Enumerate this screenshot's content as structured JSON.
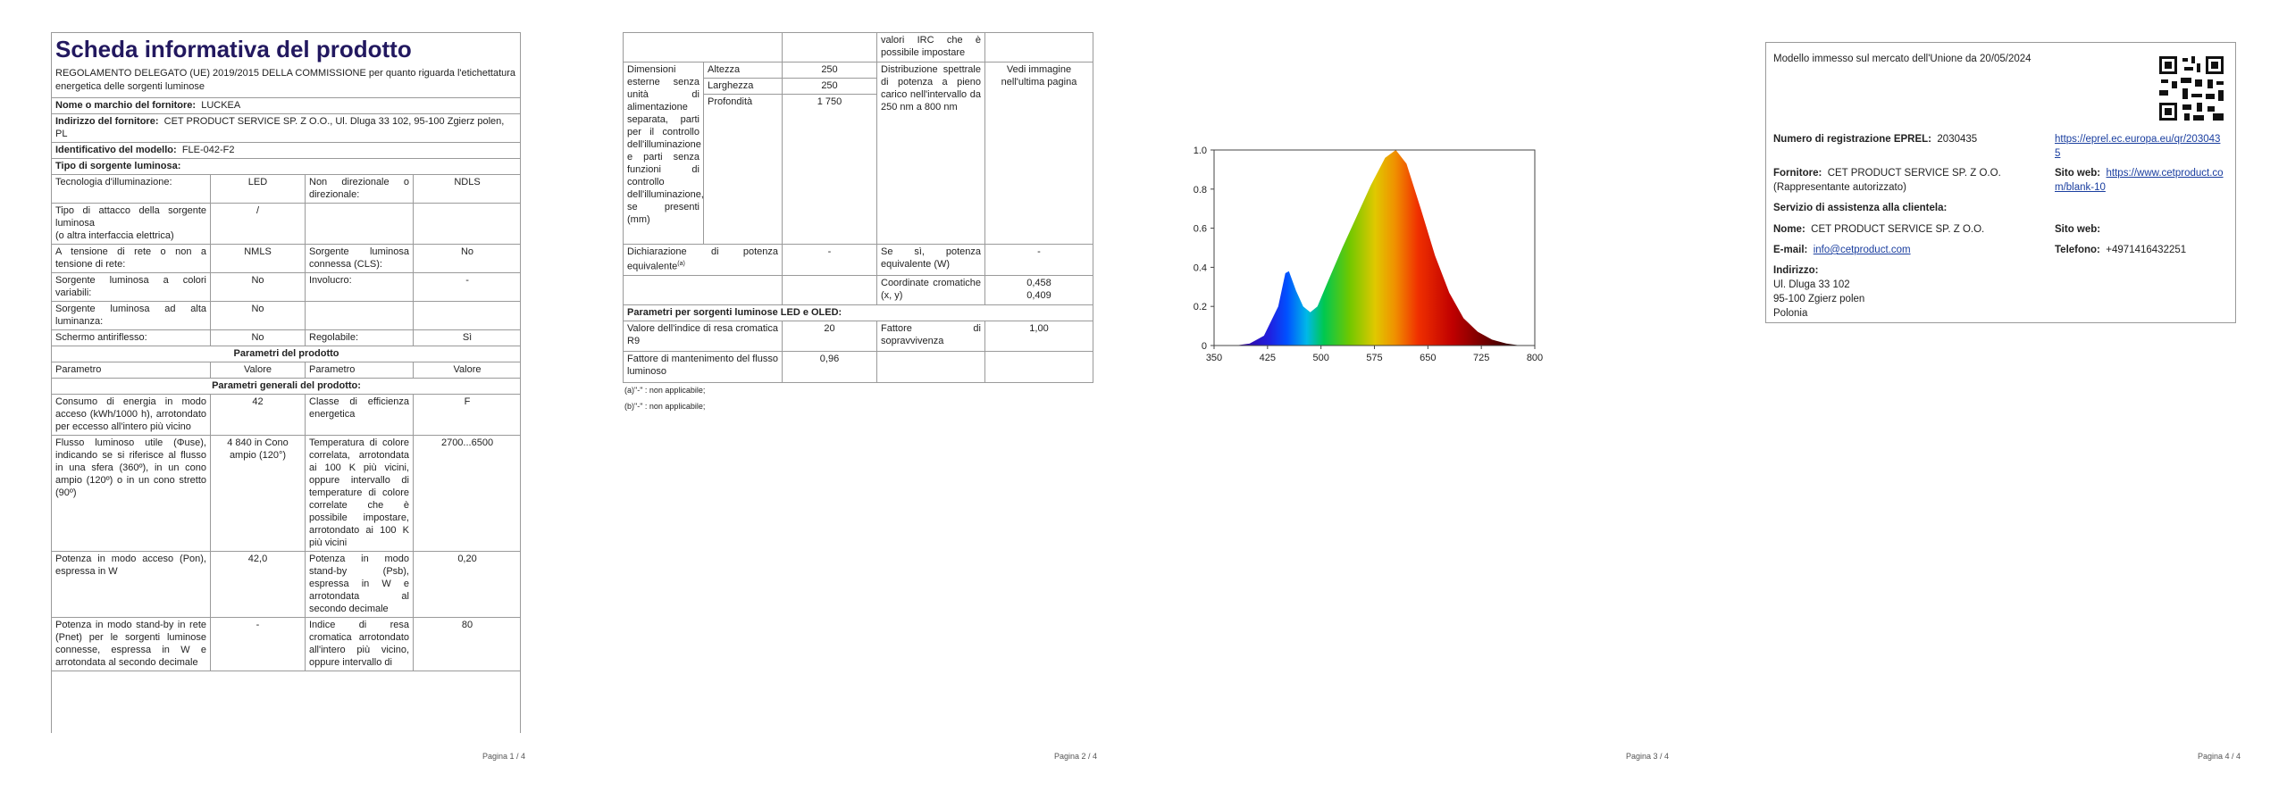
{
  "page1": {
    "title": "Scheda informativa del prodotto",
    "subtitle": "REGOLAMENTO DELEGATO (UE) 2019/2015 DELLA COMMISSIONE per quanto riguarda l'etichettatura energetica delle sorgenti luminose",
    "rows": [
      [
        "Nome o marchio del fornitore:",
        "LUCKEA"
      ],
      [
        "Indirizzo del fornitore:",
        "CET PRODUCT SERVICE SP. Z O.O., Ul. Dluga 33 102, 95-100 Zgierz polen, PL"
      ],
      [
        "Identificativo del modello:",
        "FLE-042-F2"
      ],
      [
        "Tipo di sorgente luminosa:"
      ],
      [
        "Tecnologia d'illuminazione:",
        "LED",
        "Non direzionale o direzionale:",
        "NDLS"
      ],
      [
        "Tipo di attacco della sorgente luminosa\n(o altra interfaccia elettrica)",
        "/",
        null,
        null
      ],
      [
        "A tensione di rete o non a tensione di rete:",
        "NMLS",
        "Sorgente luminosa connessa (CLS):",
        "No"
      ],
      [
        "Sorgente luminosa a colori variabili:",
        "No",
        "Involucro:",
        "-"
      ],
      [
        "Sorgente luminosa ad alta luminanza:",
        "No",
        null,
        null
      ],
      [
        "Schermo antiriflesso:",
        "No",
        "Regolabile:",
        "Sì"
      ],
      [
        "Parametri del prodotto"
      ],
      [
        "Parametro",
        "Valore",
        "Parametro",
        "Valore"
      ],
      [
        "Parametri generali del prodotto:"
      ],
      [
        "Consumo di energia in modo acceso (kWh/1000 h), arrotondato per eccesso all'intero più vicino",
        "42",
        "Classe di efficienza energetica",
        "F"
      ],
      [
        "Flusso luminoso utile (Φuse), indicando se si riferisce al flusso in una sfera (360º), in un cono ampio (120º) o in un cono stretto (90º)",
        "4 840 in Cono ampio (120°)",
        "Temperatura di colore correlata, arrotondata ai 100 K più vicini, oppure intervallo di temperature di colore correlate che è possibile impostare, arrotondato ai 100 K più vicini",
        "2700...6500"
      ],
      [
        "Potenza in modo acceso (Pon), espressa in W",
        "42,0",
        "Potenza in modo stand-by (Psb), espressa in W e arrotondata al secondo decimale",
        "0,20"
      ],
      [
        "Potenza in modo stand-by in rete (Pnet) per le sorgenti luminose connesse, espressa in W e arrotondata al secondo decimale",
        "-",
        "Indice di resa cromatica arrotondato all'intero più vicino, oppure intervallo di",
        "80"
      ]
    ],
    "footer": "Pagina 1 / 4"
  },
  "page2": {
    "irc_continuation": "valori IRC che è possibile impostare",
    "dimensions": {
      "label": "Dimensioni esterne senza unità di alimentazione separata, parti per il controllo dell'illuminazione e parti senza funzioni di controllo dell'illuminazione, se presenti (mm)",
      "height": {
        "label": "Altezza",
        "value": "250"
      },
      "width": {
        "label": "Larghezza",
        "value": "250"
      },
      "depth": {
        "label": "Profondità",
        "value": "1 750"
      }
    },
    "spectral": {
      "label": "Distribuzione spettrale di potenza a pieno carico nell'intervallo da 250 nm a 800 nm",
      "value": "Vedi immagine nell'ultima pagina"
    },
    "equivalent": {
      "label": "Dichiarazione di potenza equivalente",
      "note": "(a)",
      "value": "-",
      "if_yes_label": "Se sì, potenza equivalente (W)",
      "if_yes_value": "-"
    },
    "chromaticity": {
      "label": "Coordinate cromatiche (x, y)",
      "x": "0,458",
      "y": "0,409"
    },
    "led_section": "Parametri per sorgenti luminose LED e OLED:",
    "r9": {
      "label": "Valore dell'indice di resa cromatica R9",
      "value": "20"
    },
    "survival": {
      "label": "Fattore di sopravvivenza",
      "value": "1,00"
    },
    "maintenance": {
      "label": "Fattore di mantenimento del flusso luminoso",
      "value": "0,96"
    },
    "notes": [
      "(a)\"-\" : non applicabile;",
      "(b)\"-\" : non applicabile;"
    ],
    "footer": "Pagina 2 / 4"
  },
  "page3": {
    "chart": {
      "type": "area",
      "x": [
        380,
        400,
        420,
        440,
        450,
        455,
        465,
        475,
        485,
        495,
        510,
        530,
        550,
        570,
        590,
        605,
        620,
        640,
        660,
        680,
        700,
        720,
        740,
        760,
        780
      ],
      "values": [
        0,
        0.01,
        0.05,
        0.2,
        0.37,
        0.38,
        0.28,
        0.2,
        0.17,
        0.2,
        0.33,
        0.5,
        0.66,
        0.82,
        0.96,
        1.0,
        0.93,
        0.7,
        0.46,
        0.27,
        0.14,
        0.07,
        0.03,
        0.01,
        0
      ],
      "xlim": [
        350,
        800
      ],
      "ylim": [
        0,
        1
      ],
      "xticks": [
        350,
        425,
        500,
        575,
        650,
        725,
        800
      ],
      "yticks": [
        0,
        0.2,
        0.4,
        0.6,
        0.8,
        {
          "value": 1,
          "label": "1.0"
        }
      ]
    },
    "footer": "Pagina 3 / 4"
  },
  "page4": {
    "market_date": "Modello immesso sul mercato dell'Unione da 20/05/2024",
    "eprel": {
      "label": "Numero di registrazione EPREL:",
      "value": "2030435",
      "link": "https://eprel.ec.europa.eu/qr/2030435"
    },
    "supplier": {
      "label": "Fornitore:",
      "value": "CET PRODUCT SERVICE SP. Z O.O. (Rappresentante autorizzato)",
      "web_label": "Sito web:",
      "web": "https://www.cetproduct.com/blank-10"
    },
    "service": {
      "title": "Servizio di assistenza alla clientela:",
      "name_label": "Nome:",
      "name": "CET PRODUCT SERVICE SP. Z O.O.",
      "web_label": "Sito web:",
      "email_label": "E-mail:",
      "email": "info@cetproduct.com",
      "phone_label": "Telefono:",
      "phone": "+4971416432251",
      "address_label": "Indirizzo:",
      "address": [
        "Ul. Dluga 33 102",
        "95-100 Zgierz polen",
        "Polonia"
      ]
    },
    "footer": "Pagina 4 / 4"
  }
}
